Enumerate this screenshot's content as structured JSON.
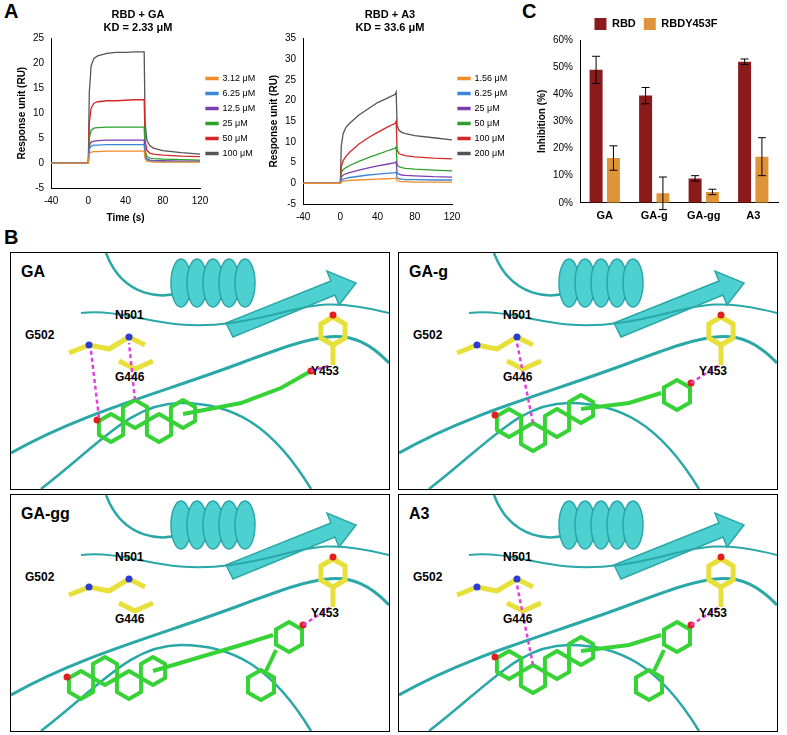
{
  "chart_data": [
    {
      "type": "line",
      "title": "RBD + GA",
      "subtitle": "KD = 2.33 μM",
      "x_label": "Time (s)",
      "y_label": "Response unit (RU)",
      "x": [
        -40,
        -20,
        -1,
        0,
        1,
        3,
        6,
        10,
        20,
        30,
        40,
        50,
        59,
        60,
        61,
        63,
        66,
        70,
        80,
        100,
        120
      ],
      "xlim": [
        -40,
        120
      ],
      "xticks": [
        -40,
        0,
        40,
        80,
        120
      ],
      "ylim": [
        -5,
        25
      ],
      "yticks": [
        -5,
        0,
        5,
        10,
        15,
        20,
        25
      ],
      "grid": false,
      "legend": "right",
      "series": [
        {
          "name": "3.12 μM",
          "color": "#f28c28",
          "values": [
            0,
            0,
            0,
            0,
            1.8,
            2.2,
            2.3,
            2.3,
            2.4,
            2.4,
            2.4,
            2.4,
            2.4,
            2.4,
            0.8,
            0.4,
            0.3,
            0.2,
            0.2,
            0.2,
            0.2
          ]
        },
        {
          "name": "6.25 μM",
          "color": "#3a86d6",
          "values": [
            0,
            0,
            0,
            0,
            2.8,
            3.4,
            3.6,
            3.6,
            3.7,
            3.7,
            3.7,
            3.7,
            3.7,
            3.7,
            1.2,
            0.6,
            0.4,
            0.4,
            0.3,
            0.3,
            0.3
          ]
        },
        {
          "name": "12.5 μM",
          "color": "#7b3fb0",
          "values": [
            0,
            0,
            0,
            0,
            3.5,
            4.2,
            4.4,
            4.5,
            4.6,
            4.6,
            4.6,
            4.6,
            4.6,
            4.6,
            1.5,
            0.8,
            0.6,
            0.5,
            0.5,
            0.4,
            0.4
          ]
        },
        {
          "name": "25 μM",
          "color": "#2ca02c",
          "values": [
            0,
            0,
            0,
            0,
            5,
            6.6,
            7,
            7.1,
            7.2,
            7.2,
            7.2,
            7.2,
            7.2,
            7.2,
            2.5,
            1.3,
            1,
            0.9,
            0.8,
            0.7,
            0.6
          ]
        },
        {
          "name": "50 μM",
          "color": "#d62728",
          "values": [
            0,
            0,
            0,
            0,
            8,
            11,
            12,
            12.3,
            12.5,
            12.5,
            12.6,
            12.7,
            12.7,
            12.7,
            4.5,
            2.5,
            2,
            1.8,
            1.6,
            1.4,
            1.3
          ]
        },
        {
          "name": "100 μM",
          "color": "#555555",
          "values": [
            0,
            0,
            0,
            0,
            14,
            19.5,
            21,
            21.5,
            22,
            22.2,
            22.2,
            22.3,
            22.3,
            22.3,
            8,
            4.5,
            3.5,
            3,
            2.5,
            2.1,
            1.8
          ]
        }
      ]
    },
    {
      "type": "line",
      "title": "RBD + A3",
      "subtitle": "KD = 33.6 μM",
      "y_label": "Response unit (RU)",
      "x": [
        -40,
        -20,
        -1,
        0,
        1,
        3,
        6,
        10,
        20,
        30,
        40,
        50,
        59,
        60,
        61,
        63,
        66,
        70,
        80,
        100,
        120
      ],
      "xlim": [
        -40,
        120
      ],
      "xticks": [
        -40,
        0,
        40,
        80,
        120
      ],
      "ylim": [
        -5,
        35
      ],
      "yticks": [
        -5,
        0,
        5,
        10,
        15,
        20,
        25,
        30,
        35
      ],
      "grid": false,
      "legend": "right",
      "series": [
        {
          "name": "1.56 μM",
          "color": "#f28c28",
          "values": [
            0,
            0,
            0,
            0,
            0.3,
            0.5,
            0.6,
            0.7,
            0.8,
            0.9,
            1,
            1.1,
            1.2,
            1.3,
            0.6,
            0.5,
            0.4,
            0.4,
            0.3,
            0.3,
            0.3
          ]
        },
        {
          "name": "6.25 μM",
          "color": "#3a86d6",
          "values": [
            0,
            0,
            0,
            0,
            0.7,
            1,
            1.2,
            1.4,
            1.7,
            2,
            2.2,
            2.4,
            2.6,
            2.7,
            1.3,
            1.1,
            1,
            0.9,
            0.9,
            0.8,
            0.8
          ]
        },
        {
          "name": "25 μM",
          "color": "#7b3fb0",
          "values": [
            0,
            0,
            0,
            0,
            1.5,
            2,
            2.3,
            2.6,
            3.2,
            3.7,
            4.2,
            4.6,
            5,
            5.2,
            2.5,
            2.2,
            2,
            1.9,
            1.8,
            1.6,
            1.5
          ]
        },
        {
          "name": "50 μM",
          "color": "#2ca02c",
          "values": [
            0,
            0,
            0,
            0,
            2.5,
            3.3,
            3.8,
            4.3,
            5.3,
            6.2,
            7,
            7.8,
            8.5,
            8.8,
            4.5,
            4,
            3.8,
            3.6,
            3.4,
            3.2,
            3
          ]
        },
        {
          "name": "100 μM",
          "color": "#d62728",
          "values": [
            0,
            0,
            0,
            0,
            4,
            5.5,
            6.5,
            7.5,
            9.5,
            11,
            12.3,
            13.5,
            14.5,
            15,
            8,
            7.2,
            6.9,
            6.7,
            6.4,
            6.1,
            5.9
          ]
        },
        {
          "name": "200 μM",
          "color": "#555555",
          "values": [
            0,
            0,
            0,
            0,
            9,
            12,
            13.5,
            14.5,
            16.5,
            18,
            19.5,
            20.5,
            21.5,
            22,
            14,
            12.8,
            12.3,
            12,
            11.5,
            11,
            10.5
          ]
        }
      ]
    },
    {
      "type": "bar",
      "y_label": "Inhibition (%)",
      "categories": [
        "GA",
        "GA-g",
        "GA-gg",
        "A3"
      ],
      "ylim": [
        0,
        60
      ],
      "yticks": [
        {
          "value": 0,
          "label": "0%"
        },
        {
          "value": 10,
          "label": "10%"
        },
        {
          "value": 20,
          "label": "20%"
        },
        {
          "value": 30,
          "label": "30%"
        },
        {
          "value": 40,
          "label": "40%"
        },
        {
          "value": 50,
          "label": "50%"
        },
        {
          "value": 60,
          "label": "60%"
        }
      ],
      "grid": false,
      "legend": "top",
      "series": [
        {
          "name": "RBD",
          "color": "#8b1a1a",
          "values": [
            49,
            39.5,
            9,
            52
          ],
          "errors": [
            5,
            3,
            1,
            1
          ]
        },
        {
          "name": "RBDY453F",
          "color": "#e0943a",
          "values": [
            16.5,
            3.5,
            4,
            17
          ],
          "errors": [
            4.5,
            6,
            1,
            7
          ]
        }
      ]
    }
  ],
  "figure": {
    "panel_labels": [
      "A",
      "B",
      "C"
    ],
    "docking": [
      {
        "name": "GA",
        "residues": [
          "G502",
          "N501",
          "G446",
          "Y453"
        ]
      },
      {
        "name": "GA-g",
        "residues": [
          "G502",
          "N501",
          "G446",
          "Y453"
        ]
      },
      {
        "name": "GA-gg",
        "residues": [
          "G502",
          "N501",
          "G446",
          "Y453"
        ]
      },
      {
        "name": "A3",
        "residues": [
          "G502",
          "N501",
          "G446",
          "Y453"
        ]
      }
    ]
  }
}
